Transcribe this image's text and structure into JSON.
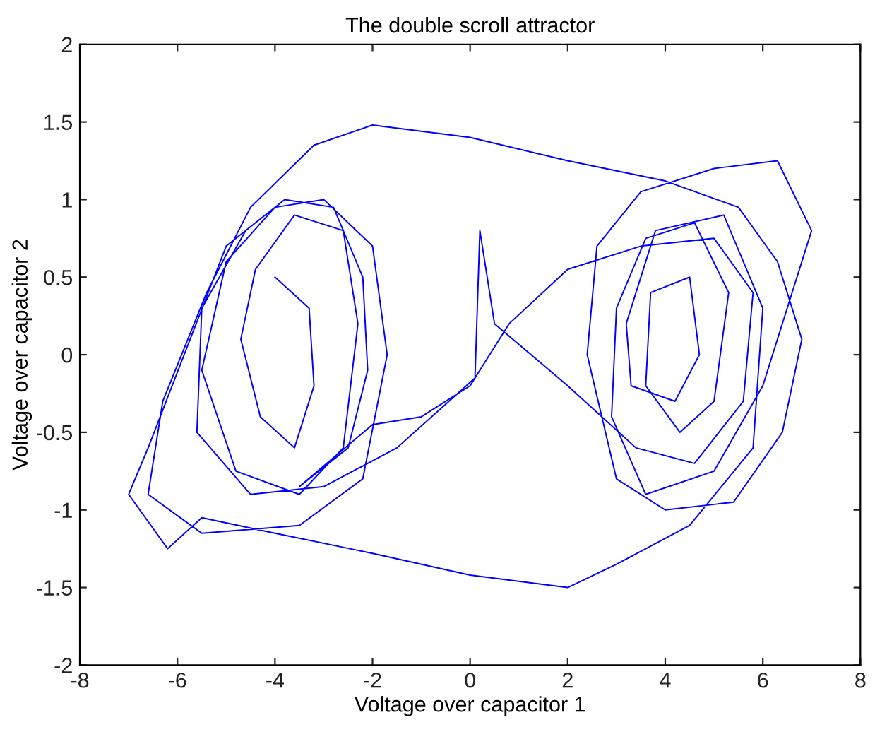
{
  "chart_data": {
    "type": "line",
    "title": "The double scroll attractor",
    "xlabel": "Voltage over capacitor 1",
    "ylabel": "Voltage over capacitor 2",
    "xlim": [
      -8,
      8
    ],
    "xticks": [
      -8,
      -6,
      -4,
      -2,
      0,
      2,
      4,
      6,
      8
    ],
    "ylim": [
      -2,
      2
    ],
    "yticks": [
      -2,
      -1.5,
      -1,
      -0.5,
      0,
      0.5,
      1,
      1.5,
      2
    ],
    "grid": false,
    "legend": false,
    "marker": "none",
    "line_style": "solid",
    "series": [
      {
        "color": "#0000ff",
        "x": [
          -4.0,
          -3.3,
          -3.2,
          -3.6,
          -4.3,
          -4.7,
          -4.4,
          -3.6,
          -2.6,
          -2.3,
          -2.6,
          -3.5,
          -4.8,
          -5.5,
          -5.0,
          -4.0,
          -3.0,
          -2.0,
          -1.7,
          -2.2,
          -3.5,
          -5.5,
          -6.6,
          -6.3,
          -5.4,
          -4.5,
          -3.2,
          -2.0,
          0.0,
          2.0,
          4.0,
          5.5,
          6.3,
          6.8,
          6.4,
          5.4,
          4.0,
          3.0,
          2.4,
          2.6,
          3.5,
          5.0,
          6.3,
          7.0,
          6.7,
          6.0,
          5.0,
          3.6,
          2.9,
          3.0,
          3.6,
          4.6,
          5.3,
          5.0,
          4.3,
          3.6,
          3.7,
          4.5,
          4.7,
          4.2,
          3.3,
          3.2,
          3.8,
          5.2,
          6.0,
          5.8,
          4.5,
          3.0,
          2.0,
          0.0,
          -2.0,
          -4.0,
          -5.5,
          -6.2,
          -7.0,
          -6.6,
          -5.0,
          -3.8,
          -2.8,
          -2.2,
          -2.1,
          -2.5,
          -3.5,
          -2.0,
          -1.0,
          0.0,
          0.8,
          2.0,
          3.5,
          5.0,
          5.8,
          5.6,
          4.6,
          3.4,
          2.0,
          0.5,
          0.2,
          0.1,
          -1.5,
          -3.0,
          -4.5,
          -5.6,
          -5.5,
          -4.6
        ],
        "values": [
          0.5,
          0.3,
          -0.2,
          -0.6,
          -0.4,
          0.1,
          0.55,
          0.9,
          0.8,
          0.2,
          -0.6,
          -0.9,
          -0.75,
          -0.1,
          0.6,
          0.95,
          1.0,
          0.7,
          0.0,
          -0.8,
          -1.1,
          -1.15,
          -0.9,
          -0.3,
          0.4,
          0.95,
          1.35,
          1.48,
          1.4,
          1.25,
          1.12,
          0.95,
          0.6,
          0.1,
          -0.5,
          -0.95,
          -1.0,
          -0.8,
          0.0,
          0.7,
          1.05,
          1.2,
          1.25,
          0.8,
          0.5,
          -0.2,
          -0.75,
          -0.9,
          -0.4,
          0.3,
          0.75,
          0.85,
          0.4,
          -0.3,
          -0.5,
          -0.2,
          0.4,
          0.5,
          0.0,
          -0.3,
          -0.2,
          0.2,
          0.8,
          0.9,
          0.3,
          -0.6,
          -1.1,
          -1.35,
          -1.5,
          -1.42,
          -1.28,
          -1.15,
          -1.05,
          -1.25,
          -0.9,
          -0.6,
          0.7,
          1.0,
          0.95,
          0.5,
          -0.1,
          -0.6,
          -0.85,
          -0.45,
          -0.4,
          -0.2,
          0.2,
          0.55,
          0.7,
          0.75,
          0.4,
          -0.3,
          -0.7,
          -0.6,
          -0.2,
          0.2,
          0.8,
          -0.15,
          -0.6,
          -0.85,
          -0.9,
          -0.5,
          0.3,
          0.8
        ]
      }
    ]
  }
}
